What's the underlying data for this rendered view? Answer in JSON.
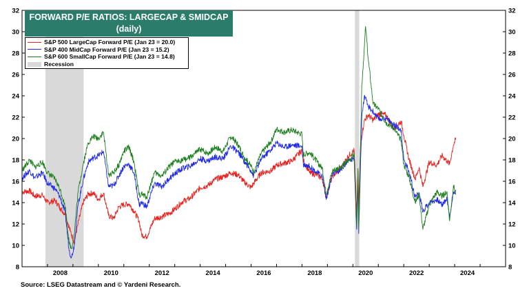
{
  "chart_data": {
    "type": "line",
    "title": "FORWARD P/E RATIOS: LARGECAP & SMIDCAP",
    "subtitle": "(daily)",
    "xlim": [
      2007.0,
      2026.0
    ],
    "ylim": [
      8,
      32
    ],
    "x_ticks": [
      2008,
      2010,
      2012,
      2014,
      2016,
      2018,
      2020,
      2022,
      2024
    ],
    "y_ticks": [
      8,
      10,
      12,
      14,
      16,
      18,
      20,
      22,
      24,
      26,
      28,
      30,
      32
    ],
    "recessions": [
      {
        "label": "Recession",
        "start": 2007.92,
        "end": 2009.42
      },
      {
        "label": "Recession",
        "start": 2020.08,
        "end": 2020.25
      }
    ],
    "series": [
      {
        "name": "S&P 500 LargeCap Forward P/E (Jan 23 = 20.0)",
        "color": "#e8201c",
        "x": [
          2007.0,
          2007.3,
          2007.5,
          2007.8,
          2008.0,
          2008.3,
          2008.5,
          2008.7,
          2008.9,
          2009.05,
          2009.2,
          2009.4,
          2009.6,
          2009.8,
          2010.0,
          2010.2,
          2010.4,
          2010.6,
          2010.8,
          2011.0,
          2011.2,
          2011.4,
          2011.6,
          2011.7,
          2011.9,
          2012.2,
          2012.5,
          2012.8,
          2013.0,
          2013.3,
          2013.6,
          2014.0,
          2014.3,
          2014.6,
          2014.9,
          2015.2,
          2015.5,
          2015.7,
          2016.0,
          2016.1,
          2016.4,
          2016.8,
          2017.0,
          2017.3,
          2017.6,
          2018.0,
          2018.05,
          2018.3,
          2018.6,
          2018.8,
          2018.95,
          2019.2,
          2019.5,
          2019.8,
          2020.05,
          2020.15,
          2020.2,
          2020.23,
          2020.3,
          2020.45,
          2020.6,
          2020.8,
          2021.0,
          2021.3,
          2021.6,
          2021.9,
          2022.0,
          2022.2,
          2022.45,
          2022.6,
          2022.75,
          2023.0,
          2023.3,
          2023.5,
          2023.7,
          2023.8,
          2023.95,
          2024.05
        ],
        "y": [
          15.0,
          15.1,
          14.6,
          14.7,
          14.0,
          14.2,
          13.5,
          12.9,
          11.3,
          10.3,
          12.0,
          14.0,
          14.8,
          14.9,
          14.3,
          14.9,
          12.8,
          12.5,
          13.6,
          13.8,
          13.9,
          13.2,
          12.3,
          11.0,
          10.8,
          12.5,
          12.7,
          13.0,
          13.4,
          14.1,
          14.4,
          15.4,
          15.6,
          16.2,
          16.4,
          16.8,
          16.6,
          16.0,
          15.4,
          15.8,
          16.8,
          17.0,
          17.5,
          17.7,
          17.9,
          18.9,
          18.0,
          16.8,
          16.6,
          16.2,
          14.6,
          16.5,
          17.1,
          18.3,
          18.9,
          13.0,
          17.0,
          13.5,
          19.5,
          21.7,
          22.2,
          21.7,
          22.3,
          22.2,
          21.0,
          21.6,
          20.3,
          18.1,
          16.2,
          17.3,
          15.5,
          17.8,
          17.5,
          18.4,
          17.9,
          17.6,
          19.4,
          20.0
        ]
      },
      {
        "name": "S&P 400 MidCap Forward P/E (Jan 23 = 15.2)",
        "color": "#1f2ae6",
        "x": [
          2007.0,
          2007.3,
          2007.5,
          2007.8,
          2008.0,
          2008.3,
          2008.5,
          2008.7,
          2008.85,
          2008.95,
          2009.05,
          2009.2,
          2009.4,
          2009.6,
          2009.8,
          2010.0,
          2010.2,
          2010.4,
          2010.6,
          2010.8,
          2011.0,
          2011.2,
          2011.4,
          2011.6,
          2011.7,
          2011.9,
          2012.2,
          2012.5,
          2012.8,
          2013.0,
          2013.3,
          2013.6,
          2014.0,
          2014.3,
          2014.6,
          2014.9,
          2015.2,
          2015.5,
          2015.7,
          2016.0,
          2016.1,
          2016.4,
          2016.8,
          2017.0,
          2017.3,
          2017.6,
          2018.0,
          2018.05,
          2018.3,
          2018.6,
          2018.8,
          2018.95,
          2019.2,
          2019.5,
          2019.8,
          2020.05,
          2020.15,
          2020.2,
          2020.23,
          2020.35,
          2020.45,
          2020.6,
          2020.8,
          2021.0,
          2021.3,
          2021.6,
          2021.9,
          2022.0,
          2022.2,
          2022.45,
          2022.6,
          2022.75,
          2023.0,
          2023.3,
          2023.5,
          2023.7,
          2023.8,
          2023.95,
          2024.05
        ],
        "y": [
          16.3,
          17.0,
          16.3,
          16.8,
          15.8,
          15.3,
          14.5,
          13.0,
          9.5,
          8.9,
          10.0,
          13.8,
          16.1,
          17.8,
          18.2,
          18.4,
          18.8,
          15.5,
          15.6,
          16.5,
          17.4,
          17.6,
          16.8,
          13.8,
          14.0,
          13.6,
          15.8,
          15.5,
          16.3,
          16.7,
          17.2,
          17.4,
          18.1,
          17.9,
          18.3,
          18.1,
          19.3,
          18.7,
          18.0,
          17.0,
          16.5,
          18.1,
          19.0,
          19.6,
          19.2,
          19.4,
          19.3,
          17.6,
          17.4,
          16.8,
          16.5,
          14.3,
          16.7,
          17.0,
          17.9,
          18.1,
          11.5,
          16.0,
          11.1,
          22.0,
          24.0,
          23.0,
          22.5,
          21.8,
          21.9,
          21.3,
          20.8,
          18.0,
          17.0,
          14.5,
          14.9,
          13.2,
          14.0,
          14.3,
          13.8,
          14.4,
          12.6,
          15.0,
          15.2
        ]
      },
      {
        "name": "S&P 600 SmallCap Forward P/E (Jan 23 = 14.8)",
        "color": "#1e7f1e",
        "x": [
          2007.0,
          2007.3,
          2007.5,
          2007.8,
          2008.0,
          2008.3,
          2008.5,
          2008.7,
          2008.85,
          2008.95,
          2009.05,
          2009.2,
          2009.4,
          2009.6,
          2009.8,
          2010.0,
          2010.2,
          2010.4,
          2010.6,
          2010.8,
          2011.0,
          2011.2,
          2011.4,
          2011.6,
          2011.7,
          2011.9,
          2012.2,
          2012.5,
          2012.8,
          2013.0,
          2013.3,
          2013.6,
          2014.0,
          2014.3,
          2014.6,
          2014.9,
          2015.2,
          2015.5,
          2015.7,
          2016.0,
          2016.1,
          2016.4,
          2016.8,
          2017.0,
          2017.3,
          2017.6,
          2018.0,
          2018.05,
          2018.3,
          2018.6,
          2018.8,
          2018.95,
          2019.2,
          2019.5,
          2019.8,
          2020.05,
          2020.15,
          2020.2,
          2020.23,
          2020.35,
          2020.45,
          2020.5,
          2020.6,
          2020.8,
          2021.0,
          2021.3,
          2021.6,
          2021.9,
          2022.0,
          2022.2,
          2022.45,
          2022.6,
          2022.75,
          2023.0,
          2023.3,
          2023.5,
          2023.7,
          2023.8,
          2023.95,
          2024.05
        ],
        "y": [
          17.0,
          18.0,
          17.3,
          17.8,
          16.8,
          16.2,
          15.2,
          13.6,
          10.2,
          9.7,
          11.0,
          15.0,
          17.6,
          19.6,
          20.2,
          20.0,
          20.6,
          16.6,
          16.8,
          17.5,
          18.8,
          19.2,
          17.8,
          14.7,
          14.8,
          14.5,
          16.8,
          16.5,
          17.4,
          17.8,
          18.0,
          18.2,
          19.0,
          18.6,
          19.2,
          18.8,
          20.2,
          19.4,
          18.4,
          17.4,
          16.9,
          18.6,
          19.8,
          20.9,
          20.6,
          20.8,
          20.4,
          18.5,
          18.7,
          17.8,
          17.2,
          14.8,
          17.0,
          17.3,
          17.9,
          18.5,
          11.8,
          17.2,
          11.5,
          25.0,
          28.5,
          30.5,
          27.5,
          23.2,
          22.8,
          21.5,
          21.0,
          19.8,
          17.6,
          16.4,
          14.0,
          14.8,
          11.5,
          13.8,
          15.0,
          14.6,
          15.0,
          12.3,
          15.6,
          14.8
        ]
      }
    ],
    "legend": [
      {
        "label": "S&P 500 LargeCap Forward P/E (Jan 23 = 20.0)",
        "color": "#e8201c",
        "kind": "line"
      },
      {
        "label": "S&P 400 MidCap Forward P/E (Jan 23 = 15.2)",
        "color": "#1f2ae6",
        "kind": "line"
      },
      {
        "label": "S&P 600 SmallCap Forward P/E (Jan 23 = 14.8)",
        "color": "#1e7f1e",
        "kind": "line"
      },
      {
        "label": "Recession",
        "color": "#d9d9d9",
        "kind": "box"
      }
    ],
    "recession_color": "#d9d9d9",
    "title_color": "#2b7c6b",
    "source": "Source: LSEG Datastream and © Yardeni Research."
  }
}
